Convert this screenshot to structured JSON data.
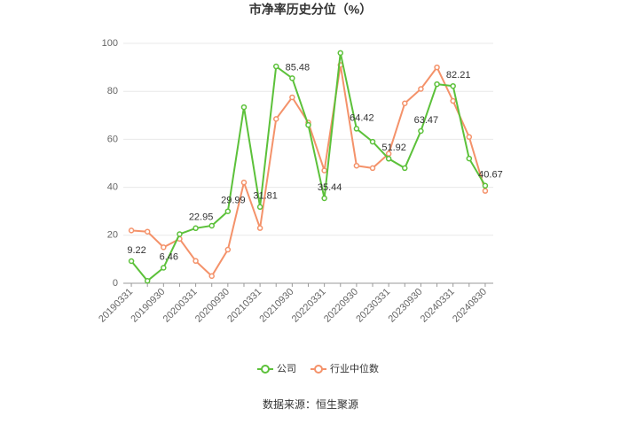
{
  "chart_data": {
    "type": "line",
    "title": "市净率历史分位（%）",
    "categories": [
      "20190331",
      null,
      "20190930",
      null,
      "20200331",
      null,
      "20200930",
      null,
      "20210331",
      null,
      "20210930",
      null,
      "20220331",
      null,
      "20220930",
      null,
      "20230331",
      null,
      "20230930",
      null,
      "20240331",
      null,
      "20240830"
    ],
    "series": [
      {
        "name": "公司",
        "color": "#5cc13a",
        "values": [
          9.22,
          1,
          6.46,
          20.5,
          22.95,
          24,
          29.99,
          73.4,
          31.81,
          90.4,
          85.48,
          66,
          35.44,
          96,
          64.42,
          59,
          51.92,
          48,
          63.47,
          83,
          82.21,
          52,
          40.67
        ],
        "value_labels": [
          "9.22",
          null,
          "6.46",
          null,
          "22.95",
          null,
          "29.99",
          null,
          "31.81",
          null,
          "85.48",
          null,
          "35.44",
          null,
          "64.42",
          null,
          "51.92",
          null,
          "63.47",
          null,
          "82.21",
          null,
          "40.67"
        ]
      },
      {
        "name": "行业中位数",
        "color": "#f4926a",
        "values": [
          22,
          21.5,
          15,
          18.5,
          9.3,
          3,
          14,
          42,
          23,
          68.5,
          77.5,
          67,
          47,
          91,
          49,
          48,
          54,
          75,
          81,
          90,
          76,
          61,
          38.5
        ]
      }
    ],
    "ylim": [
      0,
      100
    ],
    "yticks": [
      0,
      20,
      40,
      60,
      80,
      100
    ],
    "grid": true,
    "legend": "bottom",
    "source": "数据来源：恒生聚源"
  }
}
